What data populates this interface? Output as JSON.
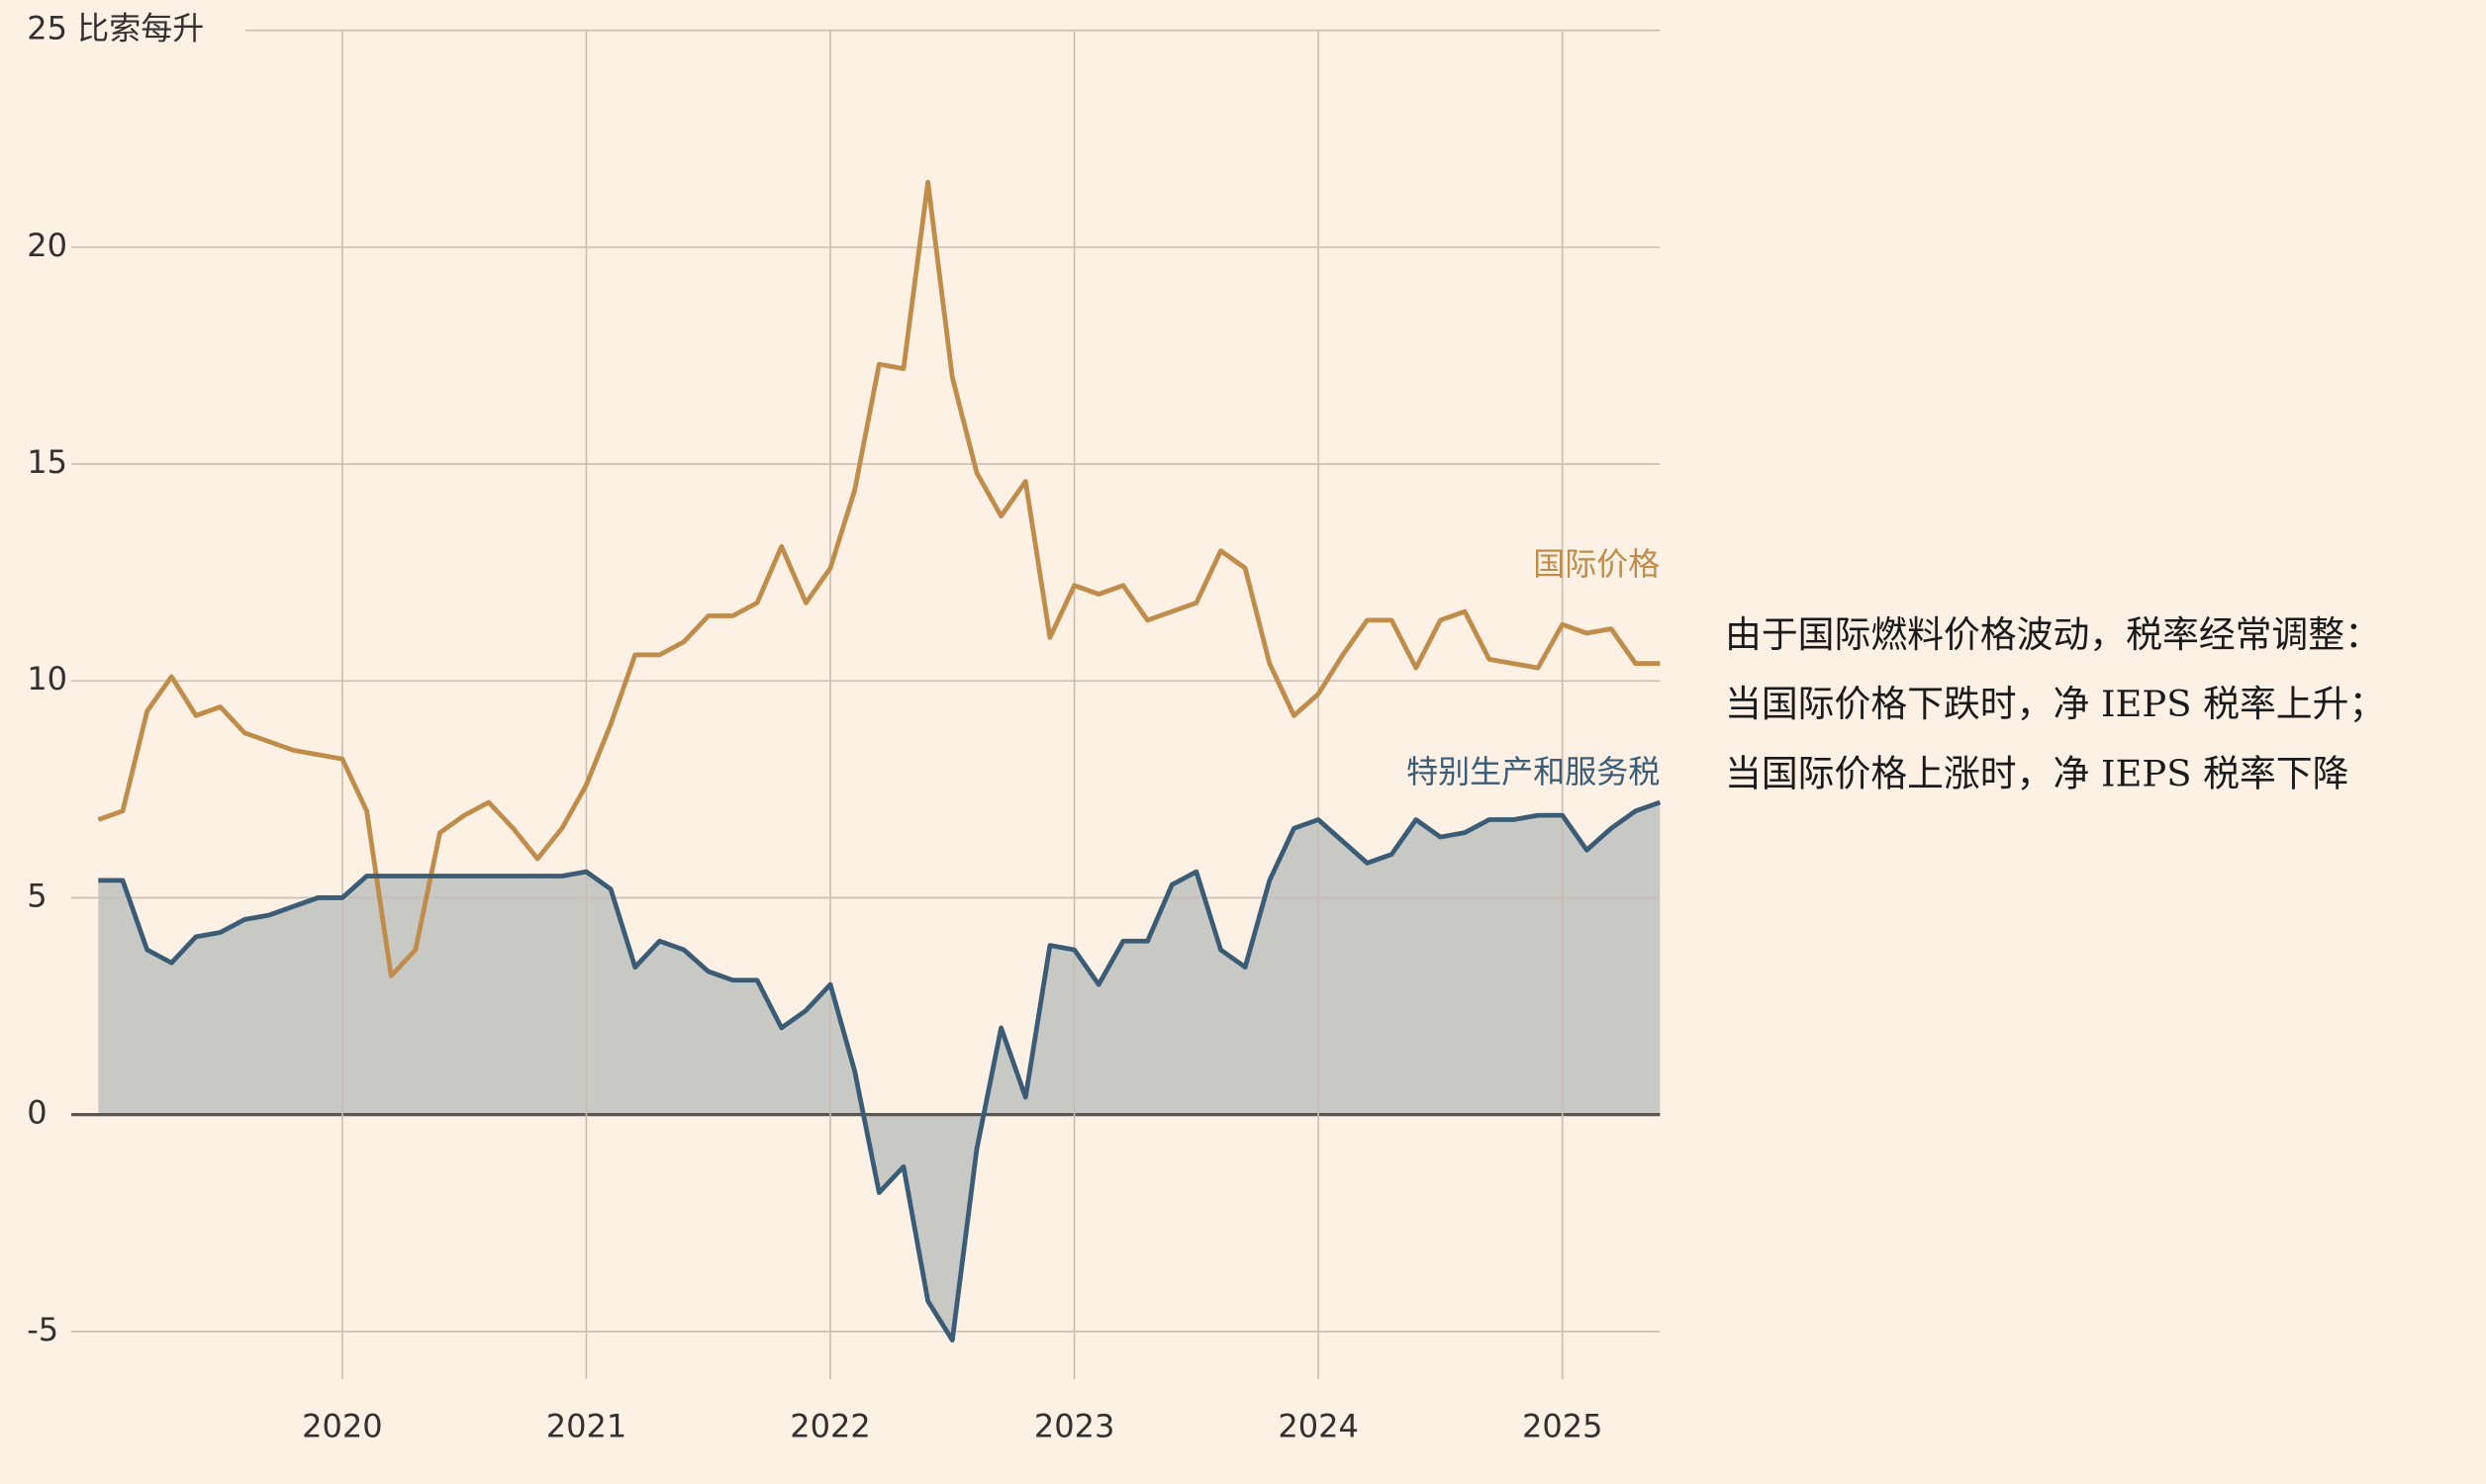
{
  "chart_data": {
    "type": "line",
    "yticks": [
      -5,
      0,
      5,
      10,
      15,
      20,
      {
        "value": 25,
        "label": "25 比索每升"
      }
    ],
    "ylim": [
      -6.1,
      25
    ],
    "xlim": [
      2019.0,
      2025.4
    ],
    "xticks": [
      2020,
      2021,
      2022,
      2023,
      2024,
      2025
    ],
    "grid": true,
    "x": [
      2019.0,
      2019.1,
      2019.2,
      2019.3,
      2019.4,
      2019.5,
      2019.6,
      2019.7,
      2019.8,
      2019.9,
      2020.0,
      2020.1,
      2020.2,
      2020.3,
      2020.4,
      2020.5,
      2020.6,
      2020.7,
      2020.8,
      2020.9,
      2021.0,
      2021.1,
      2021.2,
      2021.3,
      2021.4,
      2021.5,
      2021.6,
      2021.7,
      2021.8,
      2021.9,
      2022.0,
      2022.1,
      2022.2,
      2022.3,
      2022.4,
      2022.5,
      2022.6,
      2022.7,
      2022.8,
      2022.9,
      2023.0,
      2023.1,
      2023.2,
      2023.3,
      2023.4,
      2023.5,
      2023.6,
      2023.7,
      2023.8,
      2023.9,
      2024.0,
      2024.1,
      2024.2,
      2024.3,
      2024.4,
      2024.5,
      2024.6,
      2024.7,
      2024.8,
      2024.9,
      2025.0,
      2025.1,
      2025.2,
      2025.3,
      2025.4
    ],
    "series": [
      {
        "name": "国际价格",
        "color": "#c08c4a",
        "values": [
          6.8,
          7.0,
          9.3,
          10.1,
          9.2,
          9.4,
          8.8,
          8.6,
          8.4,
          8.3,
          8.2,
          7.0,
          3.2,
          3.8,
          6.5,
          6.9,
          7.2,
          6.6,
          5.9,
          6.6,
          7.6,
          9.0,
          10.6,
          10.6,
          10.9,
          11.5,
          11.5,
          11.8,
          13.1,
          11.8,
          12.6,
          14.4,
          17.3,
          17.2,
          21.5,
          17.0,
          14.8,
          13.8,
          14.6,
          11.0,
          12.2,
          12.0,
          12.2,
          11.4,
          11.6,
          11.8,
          13.0,
          12.6,
          10.4,
          9.2,
          9.7,
          10.6,
          11.4,
          11.4,
          10.3,
          11.4,
          11.6,
          10.5,
          10.4,
          10.3,
          11.3,
          11.1,
          11.2,
          10.4,
          10.4
        ]
      },
      {
        "name": "特别生产和服务税",
        "color": "#3b5c76",
        "fill": "#c8c8c4",
        "values": [
          5.4,
          5.4,
          3.8,
          3.5,
          4.1,
          4.2,
          4.5,
          4.6,
          4.8,
          5.0,
          5.0,
          5.5,
          5.5,
          5.5,
          5.5,
          5.5,
          5.5,
          5.5,
          5.5,
          5.5,
          5.6,
          5.2,
          3.4,
          4.0,
          3.8,
          3.3,
          3.1,
          3.1,
          2.0,
          2.4,
          3.0,
          1.0,
          -1.8,
          -1.2,
          -4.3,
          -5.2,
          -0.8,
          2.0,
          0.4,
          3.9,
          3.8,
          3.0,
          4.0,
          4.0,
          5.3,
          5.6,
          3.8,
          3.4,
          5.4,
          6.6,
          6.8,
          6.3,
          5.8,
          6.0,
          6.8,
          6.4,
          6.5,
          6.8,
          6.8,
          6.9,
          6.9,
          6.1,
          6.6,
          7.0,
          7.2
        ]
      }
    ],
    "annotation": [
      "由于国际燃料价格波动，税率经常调整：",
      "当国际价格下跌时，净 IEPS 税率上升；",
      "当国际价格上涨时，净 IEPS 税率下降"
    ]
  }
}
